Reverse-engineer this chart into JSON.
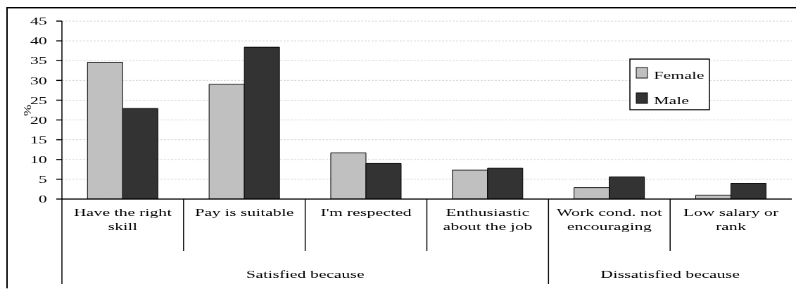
{
  "chart_data": {
    "type": "bar",
    "ylabel": "%",
    "categories": [
      "Have the right skill",
      "Pay is suitable",
      "I'm respected",
      "Enthusiastic about the job",
      "Work cond. not encouraging",
      "Low salary or rank"
    ],
    "series": [
      {
        "name": "Female",
        "color": "#c0c0c0",
        "values": [
          34.6,
          29.0,
          11.7,
          7.3,
          2.9,
          1.0
        ]
      },
      {
        "name": "Male",
        "color": "#333333",
        "values": [
          22.9,
          38.4,
          9.0,
          7.8,
          5.6,
          4.0
        ]
      }
    ],
    "ylim": [
      0,
      45
    ],
    "yticks": [
      0,
      5,
      10,
      15,
      20,
      25,
      30,
      35,
      40,
      45
    ],
    "grid": "y",
    "legend": "top right",
    "annotations": [
      "Satisfied because",
      "Dissatisfied because"
    ]
  }
}
